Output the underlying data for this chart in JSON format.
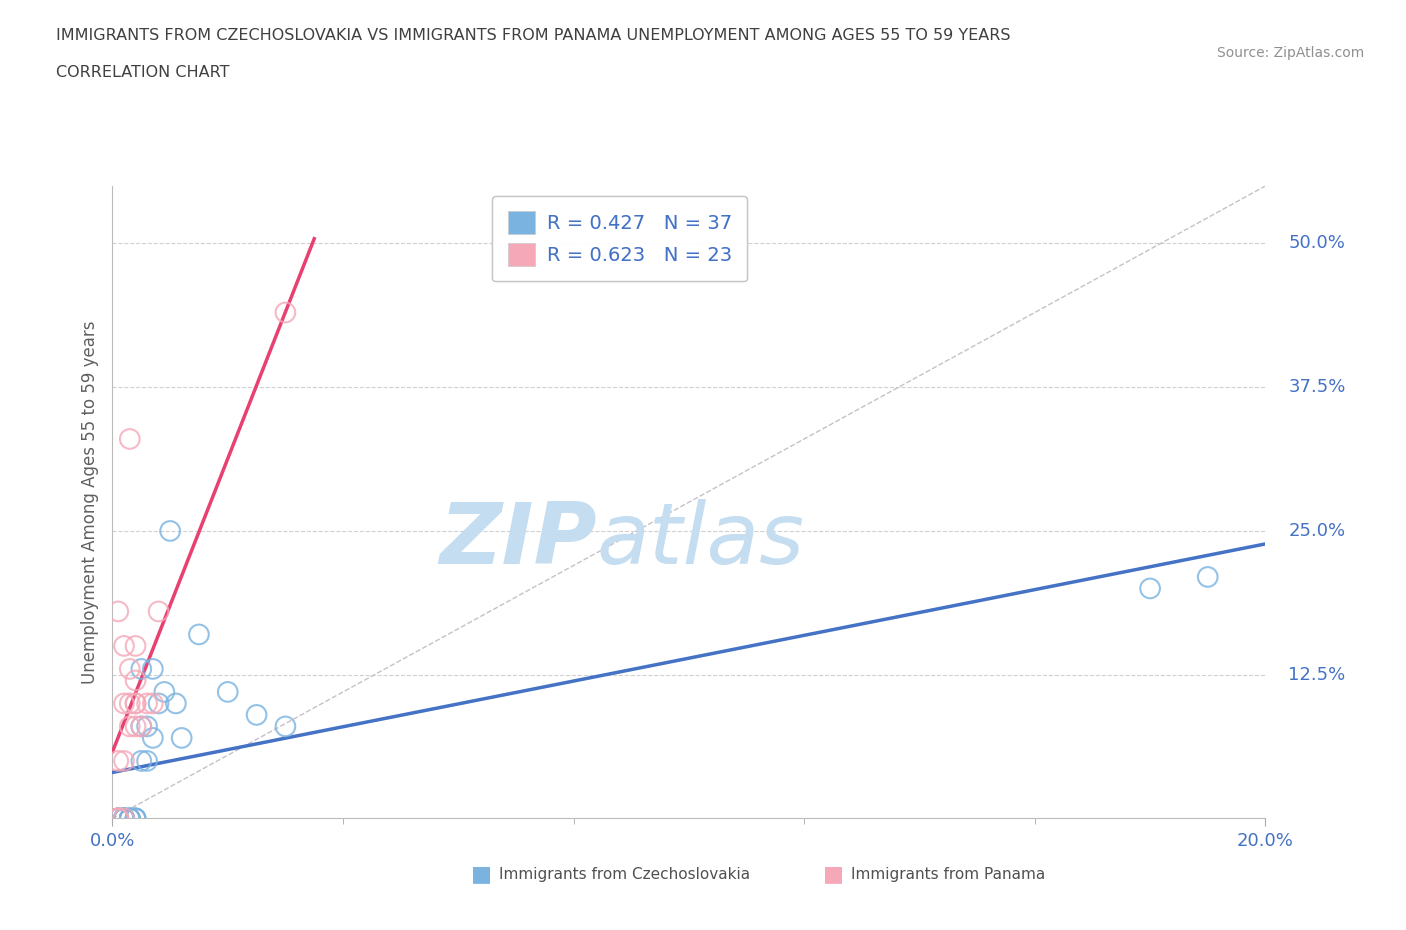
{
  "title_line1": "IMMIGRANTS FROM CZECHOSLOVAKIA VS IMMIGRANTS FROM PANAMA UNEMPLOYMENT AMONG AGES 55 TO 59 YEARS",
  "title_line2": "CORRELATION CHART",
  "source_text": "Source: ZipAtlas.com",
  "ylabel": "Unemployment Among Ages 55 to 59 years",
  "xlim": [
    0.0,
    0.2
  ],
  "ylim": [
    0.0,
    0.55
  ],
  "ytick_labels": [
    "12.5%",
    "25.0%",
    "37.5%",
    "50.0%"
  ],
  "ytick_values": [
    0.125,
    0.25,
    0.375,
    0.5
  ],
  "watermark_zip": "ZIP",
  "watermark_atlas": "atlas",
  "watermark_zip_color": "#c5ddf0",
  "watermark_atlas_color": "#c5ddf0",
  "blue_scatter_color": "#7ab3e0",
  "pink_scatter_color": "#f4a8b8",
  "blue_line_color": "#4472c4",
  "pink_line_color": "#e84070",
  "ref_line_color": "#c8c0c8",
  "grid_color": "#d0d0d0",
  "background_color": "#ffffff",
  "title_color": "#404040",
  "label_color": "#4472c4",
  "axis_label_color": "#4472c4",
  "czech_x": [
    0.001,
    0.001,
    0.001,
    0.001,
    0.002,
    0.002,
    0.002,
    0.002,
    0.002,
    0.002,
    0.002,
    0.002,
    0.003,
    0.003,
    0.003,
    0.003,
    0.004,
    0.004,
    0.004,
    0.005,
    0.005,
    0.005,
    0.006,
    0.006,
    0.007,
    0.007,
    0.008,
    0.009,
    0.01,
    0.011,
    0.012,
    0.015,
    0.02,
    0.025,
    0.03,
    0.18,
    0.19
  ],
  "czech_y": [
    0.0,
    0.0,
    0.0,
    0.0,
    0.0,
    0.0,
    0.0,
    0.0,
    0.0,
    0.0,
    0.0,
    0.0,
    0.0,
    0.0,
    0.0,
    0.0,
    0.0,
    0.0,
    0.0,
    0.05,
    0.08,
    0.13,
    0.05,
    0.08,
    0.07,
    0.13,
    0.1,
    0.11,
    0.25,
    0.1,
    0.07,
    0.16,
    0.11,
    0.09,
    0.08,
    0.2,
    0.21
  ],
  "panama_x": [
    0.001,
    0.001,
    0.001,
    0.001,
    0.001,
    0.002,
    0.002,
    0.002,
    0.002,
    0.003,
    0.003,
    0.003,
    0.003,
    0.004,
    0.004,
    0.004,
    0.004,
    0.004,
    0.005,
    0.006,
    0.007,
    0.008,
    0.03
  ],
  "panama_y": [
    0.0,
    0.0,
    0.0,
    0.05,
    0.18,
    0.0,
    0.05,
    0.1,
    0.15,
    0.08,
    0.1,
    0.13,
    0.33,
    0.08,
    0.1,
    0.1,
    0.12,
    0.15,
    0.08,
    0.1,
    0.1,
    0.18,
    0.44
  ]
}
